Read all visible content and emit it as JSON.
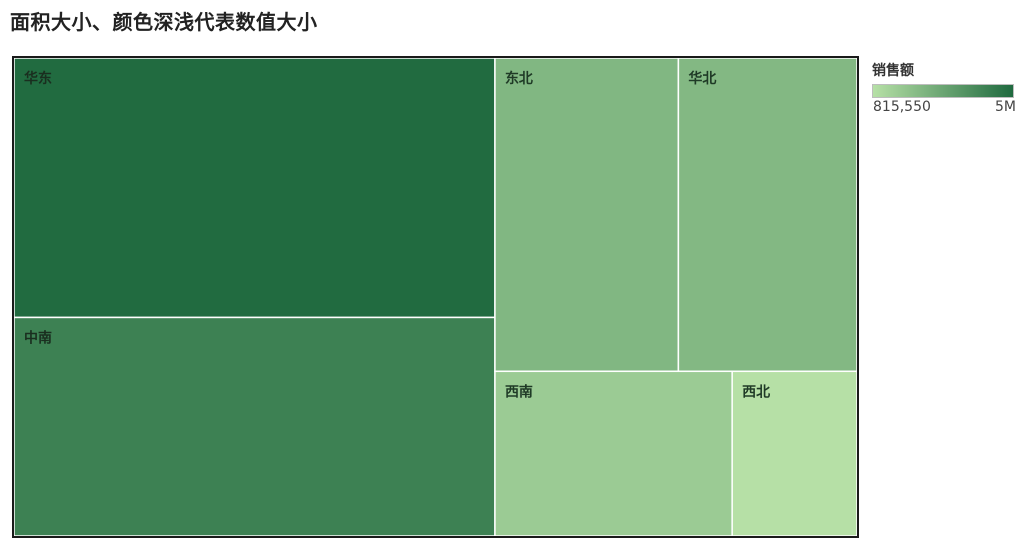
{
  "title": "面积大小、颜色深浅代表数值大小",
  "chart_data": {
    "type": "treemap",
    "size_and_color_field": "销售额",
    "categories": [
      "华东",
      "中南",
      "东北",
      "华北",
      "西南",
      "西北"
    ],
    "values": [
      4950000,
      4170000,
      2280000,
      2220000,
      1550000,
      815550
    ],
    "legend": {
      "title": "销售额",
      "min_label": "815,550",
      "max_label": "5M",
      "min_value": 815550,
      "max_value": 5000000,
      "min_color": "#b6e0a6",
      "max_color": "#1f6a3f",
      "placement": "right"
    }
  },
  "colors": {
    "label_dark": "#1f3a26",
    "tile_border": "#ffffff",
    "frame_border": "#1a1a1a"
  }
}
